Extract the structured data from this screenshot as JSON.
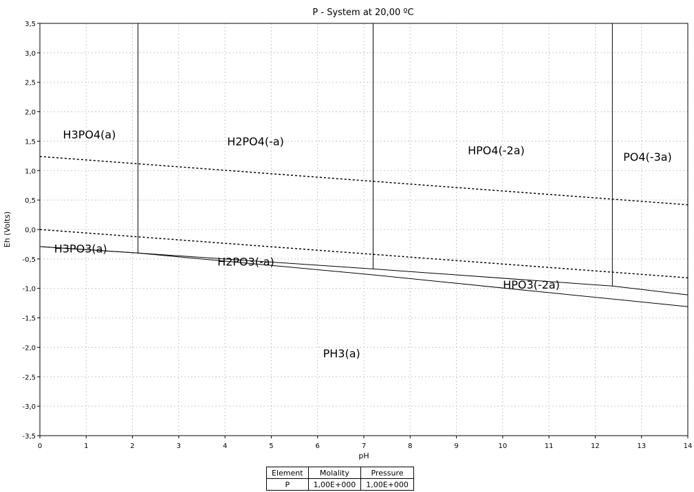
{
  "chart_data": {
    "type": "line",
    "title": "P - System at 20,00 ºC",
    "xlabel": "pH",
    "ylabel": "Eh (Volts)",
    "xlim": [
      0,
      14
    ],
    "ylim": [
      -3.5,
      3.5
    ],
    "grid": true,
    "x_ticks": [
      "0",
      "1",
      "2",
      "3",
      "4",
      "5",
      "6",
      "7",
      "8",
      "9",
      "10",
      "11",
      "12",
      "13",
      "14"
    ],
    "y_ticks": [
      "3,5",
      "3,0",
      "2,5",
      "2,0",
      "1,5",
      "1,0",
      "0,5",
      "0,0",
      "-0,5",
      "-1,0",
      "-1,5",
      "-2,0",
      "-2,5",
      "-3,0",
      "-3,5"
    ],
    "water_lines": [
      {
        "style": "dotted",
        "points": [
          [
            0,
            1.24
          ],
          [
            14,
            0.42
          ]
        ]
      },
      {
        "style": "dotted",
        "points": [
          [
            0,
            0.0
          ],
          [
            14,
            -0.82
          ]
        ]
      }
    ],
    "boundaries": [
      {
        "points": [
          [
            2.12,
            3.5
          ],
          [
            2.12,
            -0.4
          ]
        ]
      },
      {
        "points": [
          [
            7.2,
            3.5
          ],
          [
            7.2,
            -0.67
          ]
        ]
      },
      {
        "points": [
          [
            12.37,
            3.5
          ],
          [
            12.37,
            -0.96
          ]
        ]
      },
      {
        "points": [
          [
            0,
            -0.29
          ],
          [
            2.12,
            -0.4
          ],
          [
            7.2,
            -0.67
          ],
          [
            12.37,
            -0.96
          ],
          [
            14,
            -1.11
          ]
        ]
      },
      {
        "points": [
          [
            0,
            -0.29
          ],
          [
            2.12,
            -0.4
          ],
          [
            7.2,
            -0.77
          ],
          [
            14,
            -1.31
          ]
        ]
      }
    ],
    "regions": [
      {
        "label": "H3PO4(a)",
        "x": 1.07,
        "y": 1.6
      },
      {
        "label": "H2PO4(-a)",
        "x": 4.66,
        "y": 1.48
      },
      {
        "label": "HPO4(-2a)",
        "x": 9.86,
        "y": 1.33
      },
      {
        "label": "PO4(-3a)",
        "x": 13.13,
        "y": 1.22
      },
      {
        "label": "H3PO3(a)",
        "x": 0.88,
        "y": -0.34
      },
      {
        "label": "H2PO3(-a)",
        "x": 4.45,
        "y": -0.56
      },
      {
        "label": "HPO3(-2a)",
        "x": 10.62,
        "y": -0.95
      },
      {
        "label": "PH3(a)",
        "x": 6.52,
        "y": -2.12
      }
    ]
  },
  "table": {
    "headers": [
      "Element",
      "Molality",
      "Pressure"
    ],
    "rows": [
      [
        "P",
        "1,00E+000",
        "1,00E+000"
      ]
    ]
  }
}
